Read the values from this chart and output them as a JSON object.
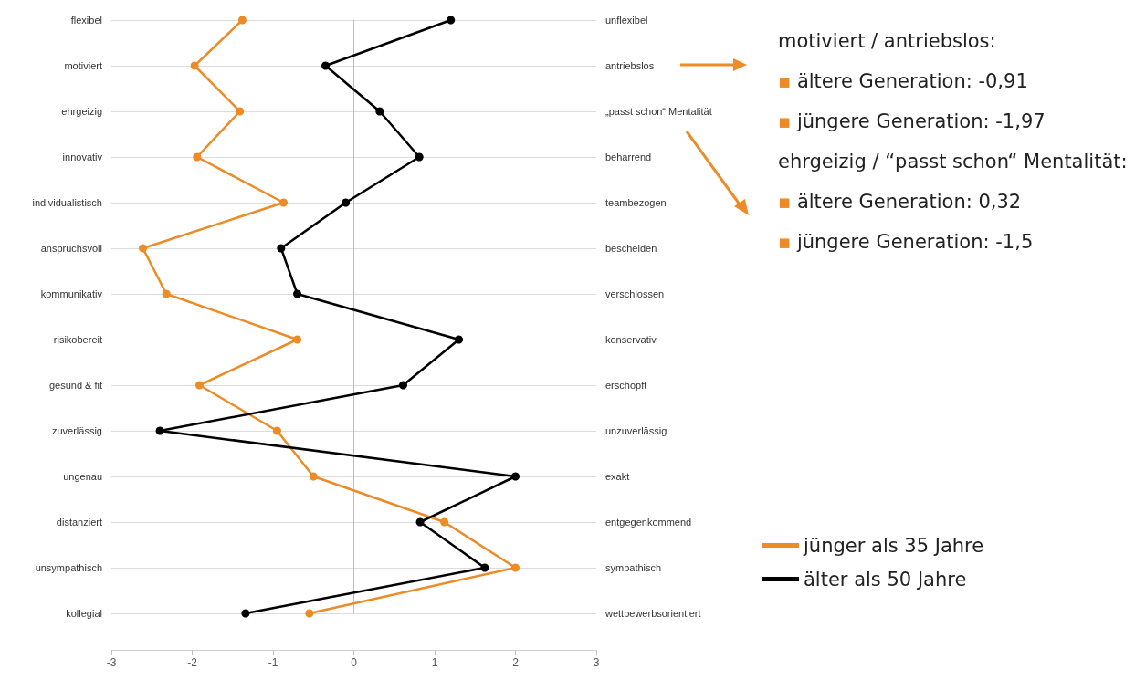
{
  "chart_data": {
    "type": "line",
    "orientation": "horizontal",
    "categories": [
      "flexibel",
      "motiviert",
      "ehrgeizig",
      "innovativ",
      "individualistisch",
      "anspruchsvoll",
      "kommunikativ",
      "risikobereit",
      "gesund & fit",
      "zuverlässig",
      "ungenau",
      "distanziert",
      "unsympathisch",
      "kollegial"
    ],
    "y2_categories": [
      "unflexibel",
      "antriebslos",
      "„passt schon“ Mentalität",
      "beharrend",
      "teambezogen",
      "bescheiden",
      "verschlossen",
      "konservativ",
      "erschöpft",
      "unzuverlässig",
      "exakt",
      "entgegenkommend",
      "sympathisch",
      "wettbewerbsorientiert"
    ],
    "series": [
      {
        "name": "jünger als 35 Jahre",
        "color": "#ed8b26",
        "values": [
          -1.38,
          -1.97,
          -1.41,
          -1.94,
          -0.87,
          -2.61,
          -2.32,
          -0.7,
          -1.91,
          -0.95,
          -0.5,
          1.12,
          2.0,
          -0.55
        ]
      },
      {
        "name": "älter als 50 Jahre",
        "color": "#000000",
        "values": [
          1.2,
          -0.35,
          0.32,
          0.81,
          -0.1,
          -0.9,
          -0.7,
          1.3,
          0.61,
          -2.4,
          2.0,
          0.82,
          1.62,
          -1.34
        ]
      }
    ],
    "xlim": [
      -3,
      3
    ],
    "xticks": [
      -3,
      -2,
      -1,
      0,
      1,
      2,
      3
    ],
    "grid": "y",
    "legend": "bottom right",
    "marker": "circle",
    "line_style": "solid",
    "annotations": [
      "motiviert / antriebslos:",
      "▪ ältere Generation: -0,91",
      "▪ jüngere Generation: -1,97",
      "ehrgeizig / “passt schon“ Mentalität:",
      "▪ ältere Generation: 0,32",
      "▪ jüngere Generation: -1,5"
    ]
  }
}
